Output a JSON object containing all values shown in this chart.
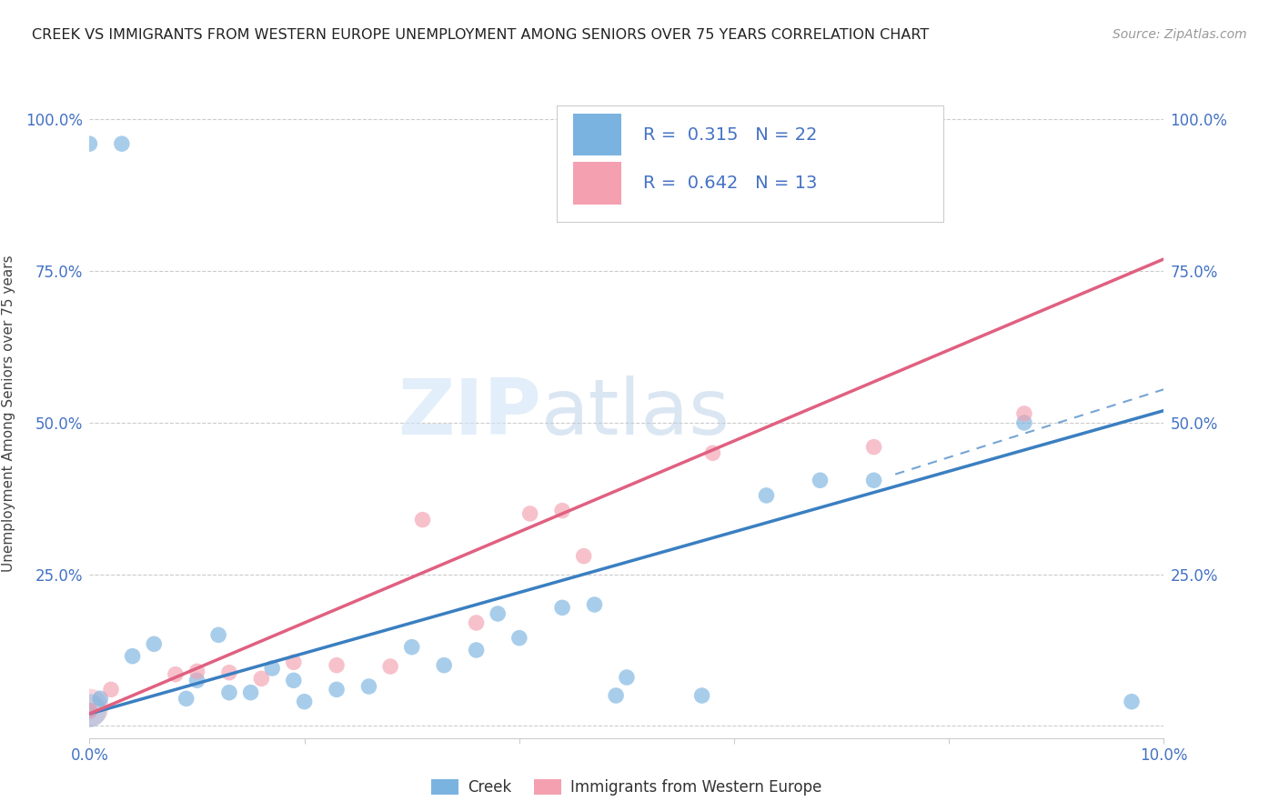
{
  "title": "CREEK VS IMMIGRANTS FROM WESTERN EUROPE UNEMPLOYMENT AMONG SENIORS OVER 75 YEARS CORRELATION CHART",
  "source": "Source: ZipAtlas.com",
  "ylabel": "Unemployment Among Seniors over 75 years",
  "xlim": [
    0.0,
    0.1
  ],
  "ylim": [
    -0.02,
    1.05
  ],
  "yticks": [
    0.0,
    0.25,
    0.5,
    0.75,
    1.0
  ],
  "ytick_labels": [
    "",
    "25.0%",
    "50.0%",
    "75.0%",
    "100.0%"
  ],
  "xticks": [
    0.0,
    0.02,
    0.04,
    0.06,
    0.08,
    0.1
  ],
  "xtick_labels": [
    "0.0%",
    "",
    "",
    "",
    "",
    "10.0%"
  ],
  "creek_color": "#7ab3e0",
  "creek_line_color": "#3a7fc1",
  "pink_color": "#f4a0b0",
  "pink_line_color": "#e06080",
  "creek_R": 0.315,
  "creek_N": 22,
  "pink_R": 0.642,
  "pink_N": 13,
  "creek_line": [
    [
      0.0,
      0.02
    ],
    [
      0.1,
      0.52
    ]
  ],
  "pink_line": [
    [
      0.0,
      0.02
    ],
    [
      0.1,
      0.77
    ]
  ],
  "creek_dash_line": [
    [
      0.075,
      0.415
    ],
    [
      0.1,
      0.555
    ]
  ],
  "creek_points": [
    [
      0.0,
      0.025
    ],
    [
      0.001,
      0.045
    ],
    [
      0.004,
      0.115
    ],
    [
      0.006,
      0.135
    ],
    [
      0.009,
      0.045
    ],
    [
      0.01,
      0.075
    ],
    [
      0.012,
      0.15
    ],
    [
      0.013,
      0.055
    ],
    [
      0.015,
      0.055
    ],
    [
      0.017,
      0.095
    ],
    [
      0.019,
      0.075
    ],
    [
      0.02,
      0.04
    ],
    [
      0.023,
      0.06
    ],
    [
      0.026,
      0.065
    ],
    [
      0.03,
      0.13
    ],
    [
      0.033,
      0.1
    ],
    [
      0.036,
      0.125
    ],
    [
      0.038,
      0.185
    ],
    [
      0.04,
      0.145
    ],
    [
      0.044,
      0.195
    ],
    [
      0.047,
      0.2
    ],
    [
      0.049,
      0.05
    ],
    [
      0.05,
      0.08
    ],
    [
      0.057,
      0.05
    ],
    [
      0.063,
      0.38
    ],
    [
      0.068,
      0.405
    ],
    [
      0.073,
      0.405
    ],
    [
      0.087,
      0.5
    ],
    [
      0.097,
      0.04
    ],
    [
      0.0,
      0.96
    ],
    [
      0.003,
      0.96
    ]
  ],
  "creek_large_points": [
    [
      0.0,
      0.025
    ]
  ],
  "pink_points": [
    [
      0.0,
      0.025
    ],
    [
      0.002,
      0.06
    ],
    [
      0.008,
      0.085
    ],
    [
      0.01,
      0.09
    ],
    [
      0.013,
      0.088
    ],
    [
      0.016,
      0.078
    ],
    [
      0.019,
      0.105
    ],
    [
      0.023,
      0.1
    ],
    [
      0.028,
      0.098
    ],
    [
      0.031,
      0.34
    ],
    [
      0.036,
      0.17
    ],
    [
      0.041,
      0.35
    ],
    [
      0.044,
      0.355
    ],
    [
      0.046,
      0.28
    ],
    [
      0.058,
      0.45
    ],
    [
      0.073,
      0.46
    ],
    [
      0.087,
      0.515
    ]
  ],
  "pink_large_point": [
    0.0,
    0.03
  ],
  "watermark_zip": "ZIP",
  "watermark_atlas": "atlas",
  "bg_color": "#ffffff",
  "grid_color": "#cccccc",
  "axis_label_color": "#4472c4",
  "legend_label_creek": "Creek",
  "legend_label_pink": "Immigrants from Western Europe"
}
